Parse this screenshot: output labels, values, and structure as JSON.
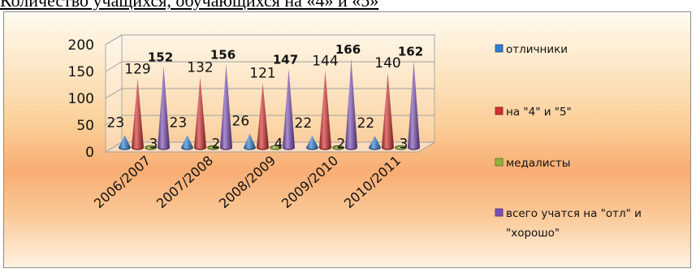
{
  "document": {
    "title": "Количество учащихся, обучающихся на «4» и «5»"
  },
  "chart_data": {
    "type": "bar",
    "style": "3d-cone",
    "categories": [
      "2006/2007",
      "2007/2008",
      "2008/2009",
      "2009/2010",
      "2010/2011"
    ],
    "series": [
      {
        "name": "отличники",
        "values": [
          23,
          23,
          26,
          22,
          22
        ],
        "color": "#2f7fd0"
      },
      {
        "name": "на \"4\" и \"5\"",
        "values": [
          129,
          132,
          121,
          144,
          140
        ],
        "color": "#d22f2f"
      },
      {
        "name": "медалисты",
        "values": [
          3,
          2,
          4,
          2,
          3
        ],
        "color": "#8fb43a"
      },
      {
        "name": "всего учатся на \"отл\" и \"хорошо\"",
        "values": [
          152,
          156,
          147,
          166,
          162
        ],
        "color": "#7c4fb6"
      }
    ],
    "ylim": [
      0,
      200
    ],
    "yticks": [
      0,
      50,
      100,
      150,
      200
    ],
    "grid": true,
    "legend_position": "right",
    "data_labels": true
  }
}
